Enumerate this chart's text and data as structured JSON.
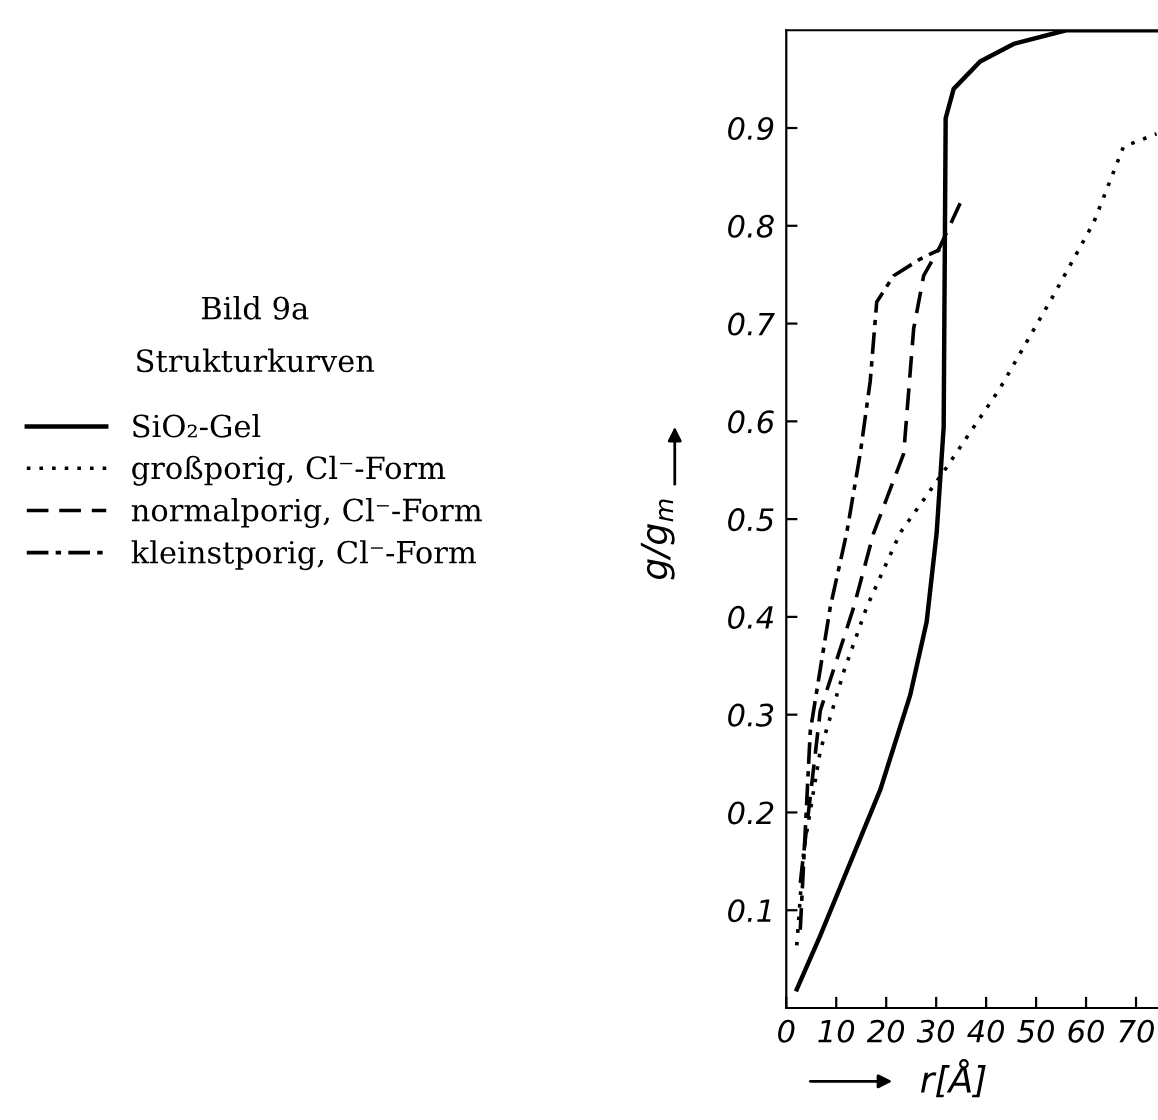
{
  "chart_data": {
    "type": "line",
    "title": "Bild 9a",
    "subtitle": "Strukturkurven",
    "xlabel": "r[Å]",
    "ylabel": "g/g$_{m}$",
    "xlim": [
      0,
      74.4
    ],
    "ylim": [
      0,
      1.0
    ],
    "xticks": [
      0,
      10,
      20,
      30,
      40,
      50,
      60,
      70
    ],
    "yticks": [
      0.1,
      0.2,
      0.3,
      0.4,
      0.5,
      0.6,
      0.7,
      0.8,
      0.9
    ],
    "grid": false,
    "legend": "left",
    "marker": "none",
    "series": [
      {
        "name": "SiO₂-Gel",
        "color": "#000000",
        "line_style": "solid",
        "x": [
          2.1,
          6.8,
          18.8,
          24.8,
          28.1,
          30.1,
          31.5,
          31.9,
          33.5,
          38.8,
          45.5,
          56,
          74.4
        ],
        "values": [
          0.019,
          0.074,
          0.223,
          0.32,
          0.395,
          0.486,
          0.594,
          0.91,
          0.94,
          0.968,
          0.986,
          1.0,
          1.0
        ]
      },
      {
        "name": "großporig, Cl⁻-Form",
        "color": "#000000",
        "line_style": "dotted",
        "x": [
          2.1,
          3.5,
          6.8,
          11.5,
          16.1,
          22.8,
          32.1,
          42.8,
          53.5,
          61.5,
          67.5,
          74.1
        ],
        "values": [
          0.064,
          0.162,
          0.263,
          0.344,
          0.41,
          0.486,
          0.553,
          0.634,
          0.729,
          0.803,
          0.881,
          0.894
        ]
      },
      {
        "name": "normalporig, Cl⁻-Form",
        "color": "#000000",
        "line_style": "dashed",
        "x": [
          2.8,
          6.8,
          13.5,
          17.5,
          23.5,
          25.5,
          27.5,
          30.8,
          34.8
        ],
        "values": [
          0.128,
          0.304,
          0.41,
          0.486,
          0.567,
          0.695,
          0.749,
          0.779,
          0.823
        ]
      },
      {
        "name": "kleinstporig, Cl⁻-Form",
        "color": "#000000",
        "line_style": "dashdot",
        "x": [
          2.8,
          4.8,
          8.8,
          12.1,
          14.8,
          16.8,
          18.1,
          21.5,
          26.8,
          30.8
        ],
        "values": [
          0.08,
          0.283,
          0.41,
          0.486,
          0.567,
          0.641,
          0.722,
          0.749,
          0.766,
          0.776
        ]
      }
    ]
  }
}
